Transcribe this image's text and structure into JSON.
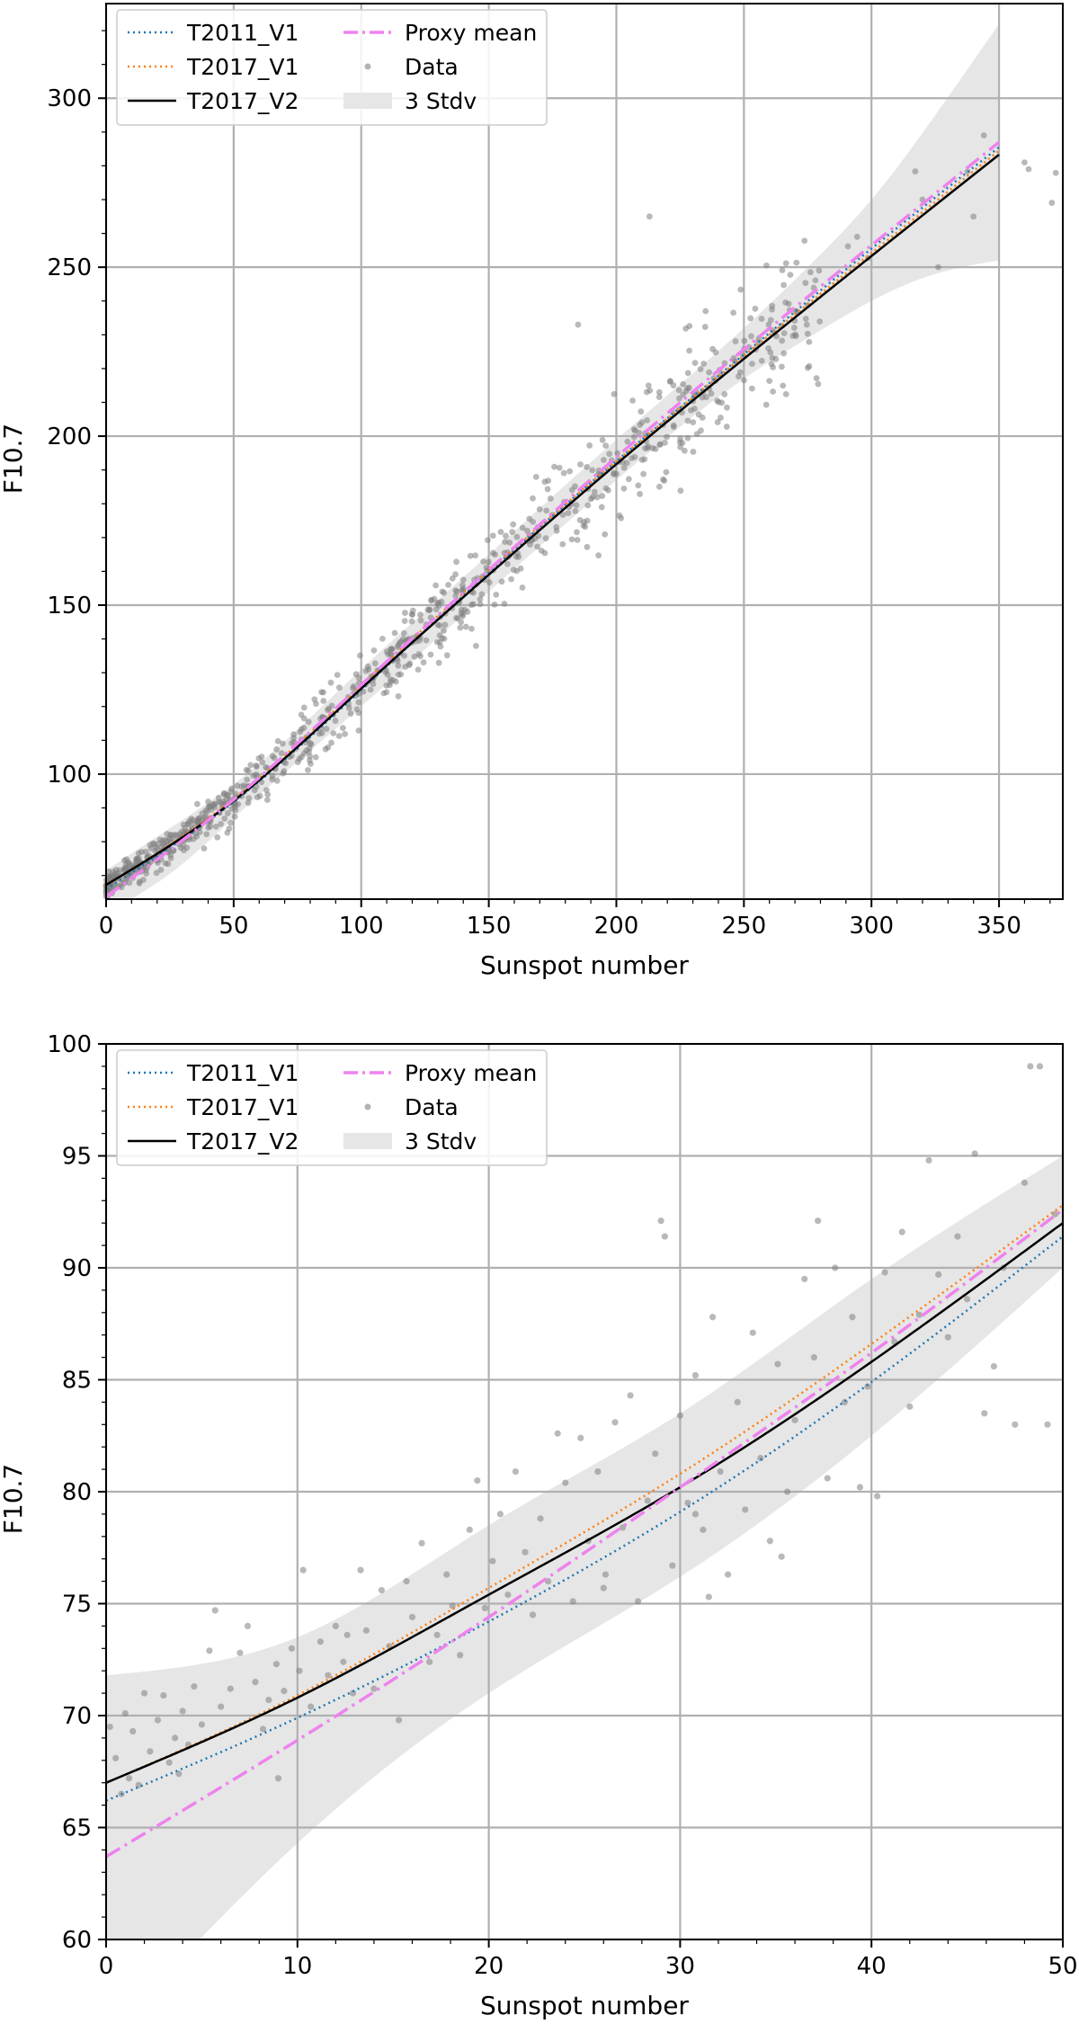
{
  "chart_data": [
    {
      "type": "line",
      "xlabel": "Sunspot number",
      "ylabel": "F10.7",
      "xlim": [
        0,
        375
      ],
      "ylim": [
        63,
        328
      ],
      "xticks": [
        0,
        50,
        100,
        150,
        200,
        250,
        300,
        350
      ],
      "yticks": [
        100,
        150,
        200,
        250,
        300
      ],
      "grid": true,
      "legend_position": "top-left",
      "series": [
        {
          "name": "T2011_V1",
          "style": "dotted",
          "color": "#1f77b4",
          "x": [
            0,
            50,
            100,
            150,
            200,
            250,
            300,
            350
          ],
          "y": [
            66.0,
            91.8,
            124.9,
            159.7,
            192.6,
            224.2,
            255.5,
            285.5
          ]
        },
        {
          "name": "T2017_V1",
          "style": "dotted",
          "color": "#ff7f0e",
          "x": [
            0,
            50,
            100,
            150,
            200,
            250,
            300,
            350
          ],
          "y": [
            67.0,
            92.7,
            126.2,
            160.2,
            192.6,
            223.8,
            254.2,
            284.5
          ]
        },
        {
          "name": "T2017_V2",
          "style": "solid",
          "color": "#000000",
          "x": [
            0,
            50,
            100,
            150,
            200,
            250,
            300,
            350
          ],
          "y": [
            67.2,
            92.1,
            125.3,
            159.0,
            191.7,
            222.9,
            253.3,
            283.3
          ]
        },
        {
          "name": "Proxy mean",
          "style": "dashdot",
          "color": "#ee82ee",
          "x": [
            0,
            50,
            100,
            150,
            200,
            250,
            300,
            350
          ],
          "y": [
            63.7,
            92.5,
            126.4,
            160.4,
            193.8,
            225.7,
            256.5,
            287.0
          ]
        }
      ],
      "band": {
        "name": "3 Stdv",
        "color": "#e6e6e6",
        "x": [
          0,
          25,
          50,
          100,
          150,
          200,
          250,
          275,
          300,
          325,
          350
        ],
        "upper": [
          71.5,
          84,
          97,
          131,
          165,
          199,
          232,
          250,
          270,
          295,
          322
        ],
        "lower": [
          59,
          70.5,
          87,
          120,
          154,
          187,
          217,
          229,
          240,
          248,
          252
        ]
      },
      "scatter": {
        "name": "Data",
        "color": "#808080"
      }
    },
    {
      "type": "line",
      "xlabel": "Sunspot number",
      "ylabel": "F10.7",
      "xlim": [
        0,
        50
      ],
      "ylim": [
        60,
        100
      ],
      "xticks": [
        0,
        10,
        20,
        30,
        40,
        50
      ],
      "yticks": [
        60,
        65,
        70,
        75,
        80,
        85,
        90,
        95,
        100
      ],
      "grid": true,
      "legend_position": "top-left",
      "series": [
        {
          "name": "T2011_V1",
          "style": "dotted",
          "color": "#1f77b4",
          "x": [
            0,
            10,
            20,
            30,
            40,
            50
          ],
          "y": [
            66.2,
            69.9,
            74.2,
            79.1,
            84.9,
            91.4
          ]
        },
        {
          "name": "T2017_V1",
          "style": "dotted",
          "color": "#ff7f0e",
          "x": [
            0,
            10,
            20,
            30,
            40,
            50
          ],
          "y": [
            67.0,
            70.9,
            75.7,
            80.8,
            86.6,
            92.8
          ]
        },
        {
          "name": "T2017_V2",
          "style": "solid",
          "color": "#000000",
          "x": [
            0,
            10,
            20,
            30,
            40,
            50
          ],
          "y": [
            67.0,
            70.8,
            75.4,
            80.2,
            85.8,
            92.0
          ]
        },
        {
          "name": "Proxy mean",
          "style": "dashdot",
          "color": "#ee82ee",
          "x": [
            0,
            10,
            20,
            30,
            40,
            50
          ],
          "y": [
            63.7,
            68.9,
            74.4,
            80.2,
            86.2,
            92.6
          ]
        }
      ],
      "band": {
        "name": "3 Stdv",
        "color": "#e6e6e6",
        "x": [
          0,
          10,
          20,
          30,
          40,
          50
        ],
        "upper": [
          71.8,
          73.5,
          78.5,
          83.5,
          89.5,
          95.0
        ],
        "lower": [
          55.6,
          64.3,
          71.0,
          76.2,
          82.5,
          90.0
        ]
      },
      "scatter": {
        "name": "Data",
        "color": "#808080",
        "points": [
          [
            0.2,
            69.5
          ],
          [
            0.5,
            68.1
          ],
          [
            0.8,
            66.5
          ],
          [
            1.0,
            70.1
          ],
          [
            1.2,
            67.2
          ],
          [
            1.4,
            69.3
          ],
          [
            1.7,
            66.9
          ],
          [
            2.0,
            71.0
          ],
          [
            2.3,
            68.4
          ],
          [
            2.7,
            69.8
          ],
          [
            3.0,
            70.9
          ],
          [
            3.3,
            67.9
          ],
          [
            3.6,
            69.0
          ],
          [
            4.0,
            70.2
          ],
          [
            4.3,
            68.7
          ],
          [
            4.6,
            71.3
          ],
          [
            5.0,
            69.6
          ],
          [
            5.4,
            72.9
          ],
          [
            5.7,
            74.7
          ],
          [
            6.0,
            70.4
          ],
          [
            6.5,
            71.2
          ],
          [
            7.0,
            72.8
          ],
          [
            7.4,
            74.0
          ],
          [
            7.8,
            71.5
          ],
          [
            8.2,
            69.4
          ],
          [
            8.5,
            70.7
          ],
          [
            8.9,
            72.3
          ],
          [
            9.3,
            71.1
          ],
          [
            9.7,
            73.0
          ],
          [
            10.1,
            72.0
          ],
          [
            10.3,
            76.5
          ],
          [
            10.7,
            70.4
          ],
          [
            11.2,
            73.3
          ],
          [
            11.6,
            71.8
          ],
          [
            12.0,
            74.0
          ],
          [
            12.4,
            72.4
          ],
          [
            12.9,
            71.0
          ],
          [
            13.3,
            76.5
          ],
          [
            13.6,
            73.8
          ],
          [
            14.0,
            71.2
          ],
          [
            14.4,
            75.6
          ],
          [
            14.8,
            73.1
          ],
          [
            15.3,
            69.8
          ],
          [
            15.7,
            76.0
          ],
          [
            16.0,
            74.4
          ],
          [
            16.5,
            77.7
          ],
          [
            16.9,
            72.4
          ],
          [
            17.3,
            73.6
          ],
          [
            17.8,
            76.3
          ],
          [
            18.1,
            74.9
          ],
          [
            18.5,
            72.7
          ],
          [
            19.0,
            78.3
          ],
          [
            19.4,
            80.5
          ],
          [
            19.8,
            74.8
          ],
          [
            20.2,
            76.9
          ],
          [
            20.6,
            79.0
          ],
          [
            21.0,
            75.4
          ],
          [
            21.4,
            80.9
          ],
          [
            21.9,
            77.3
          ],
          [
            22.3,
            74.5
          ],
          [
            22.7,
            78.8
          ],
          [
            23.1,
            76.0
          ],
          [
            23.6,
            82.6
          ],
          [
            24.0,
            80.4
          ],
          [
            24.4,
            75.1
          ],
          [
            24.8,
            82.4
          ],
          [
            25.2,
            77.8
          ],
          [
            25.7,
            80.9
          ],
          [
            26.1,
            76.3
          ],
          [
            26.6,
            83.1
          ],
          [
            27.0,
            78.4
          ],
          [
            27.4,
            84.3
          ],
          [
            27.8,
            75.1
          ],
          [
            28.3,
            79.6
          ],
          [
            28.7,
            81.7
          ],
          [
            29.0,
            92.1
          ],
          [
            29.2,
            91.4
          ],
          [
            29.6,
            76.7
          ],
          [
            30.0,
            83.4
          ],
          [
            30.4,
            79.5
          ],
          [
            30.8,
            85.2
          ],
          [
            31.2,
            78.3
          ],
          [
            31.7,
            87.8
          ],
          [
            32.1,
            80.9
          ],
          [
            32.5,
            76.3
          ],
          [
            33.0,
            84.0
          ],
          [
            33.4,
            79.2
          ],
          [
            33.8,
            87.1
          ],
          [
            34.2,
            81.5
          ],
          [
            34.7,
            77.8
          ],
          [
            35.1,
            85.7
          ],
          [
            35.6,
            80.0
          ],
          [
            36.0,
            83.2
          ],
          [
            36.5,
            89.5
          ],
          [
            37.0,
            86.0
          ],
          [
            37.2,
            92.1
          ],
          [
            37.7,
            80.6
          ],
          [
            38.1,
            90.0
          ],
          [
            38.6,
            84.0
          ],
          [
            39.0,
            87.8
          ],
          [
            39.4,
            80.2
          ],
          [
            39.8,
            84.7
          ],
          [
            40.3,
            79.8
          ],
          [
            40.7,
            89.8
          ],
          [
            41.2,
            86.7
          ],
          [
            41.6,
            91.6
          ],
          [
            42.0,
            83.8
          ],
          [
            42.5,
            87.9
          ],
          [
            43.0,
            94.8
          ],
          [
            43.5,
            89.7
          ],
          [
            44.0,
            86.9
          ],
          [
            44.5,
            91.4
          ],
          [
            45.0,
            88.6
          ],
          [
            45.4,
            95.1
          ],
          [
            45.9,
            83.5
          ],
          [
            46.4,
            85.6
          ],
          [
            46.9,
            90.0
          ],
          [
            47.5,
            83.0
          ],
          [
            48.0,
            93.8
          ],
          [
            48.3,
            99.0
          ],
          [
            48.8,
            99.0
          ],
          [
            49.2,
            83.0
          ],
          [
            49.6,
            92.4
          ],
          [
            30.8,
            79.0
          ],
          [
            26.0,
            75.7
          ],
          [
            35.3,
            77.1
          ],
          [
            31.5,
            75.3
          ],
          [
            12.6,
            73.6
          ],
          [
            9.0,
            67.2
          ],
          [
            3.8,
            67.4
          ]
        ]
      }
    }
  ],
  "legend": {
    "t2011": "T2011_V1",
    "t2017v1": "T2017_V1",
    "t2017v2": "T2017_V2",
    "proxy": "Proxy mean",
    "data": "Data",
    "band": "3 Stdv"
  }
}
